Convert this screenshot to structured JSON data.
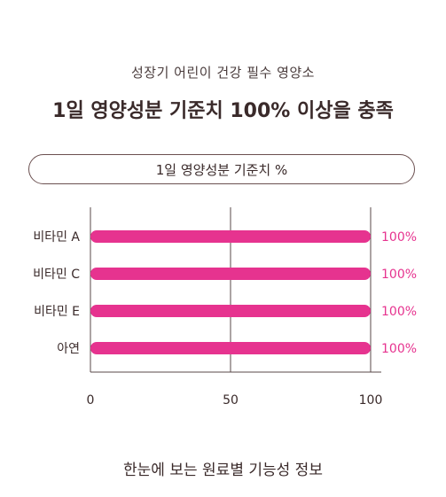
{
  "header": {
    "subtitle": "성장기 어린이 건강 필수 영양소",
    "title": "1일 영양성분 기준치 100% 이상을 충족"
  },
  "legend_pill": "1일 영양성분 기준치 %",
  "footer": "한눈에 보는 원료별 기능성 정보",
  "colors": {
    "bar": "#e6338f",
    "value_text": "#e6338f",
    "axis": "#5a4848"
  },
  "chart_data": {
    "type": "bar",
    "orientation": "horizontal",
    "categories": [
      "비타민 A",
      "비타민 C",
      "비타민 E",
      "아연"
    ],
    "values": [
      100,
      100,
      100,
      100
    ],
    "value_labels": [
      "100%",
      "100%",
      "100%",
      "100%"
    ],
    "xlim": [
      0,
      100
    ],
    "xticks": [
      0,
      50,
      100
    ],
    "title": "1일 영양성분 기준치 %",
    "grid": "vertical line at 50"
  }
}
